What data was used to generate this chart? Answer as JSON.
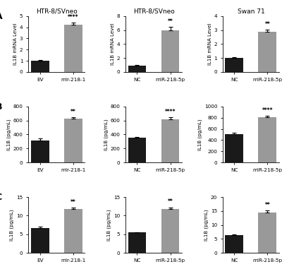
{
  "rows": [
    {
      "label": "A",
      "col_titles": [
        "HTR-8/SVneo",
        "HTR-8/SVneo",
        "Swan 71"
      ],
      "subplots": [
        {
          "categories": [
            "EV",
            "mir-218-1"
          ],
          "values": [
            1.0,
            4.25
          ],
          "errors": [
            0.06,
            0.18
          ],
          "ylabel": "IL1B mRNA Level",
          "ylim": [
            0,
            5
          ],
          "yticks": [
            0,
            1,
            2,
            3,
            4,
            5
          ],
          "bar_colors": [
            "#1a1a1a",
            "#999999"
          ],
          "significance": "****",
          "sig_on_bar": 1
        },
        {
          "categories": [
            "NC",
            "miR-218-5p"
          ],
          "values": [
            0.9,
            6.0
          ],
          "errors": [
            0.06,
            0.45
          ],
          "ylabel": "IL1B mRNA Level",
          "ylim": [
            0,
            8
          ],
          "yticks": [
            0,
            2,
            4,
            6,
            8
          ],
          "bar_colors": [
            "#1a1a1a",
            "#999999"
          ],
          "significance": "**",
          "sig_on_bar": 1
        },
        {
          "categories": [
            "NC",
            "miR-218-5p"
          ],
          "values": [
            1.0,
            2.9
          ],
          "errors": [
            0.05,
            0.14
          ],
          "ylabel": "IL1B mRNA Level",
          "ylim": [
            0,
            4
          ],
          "yticks": [
            0,
            1,
            2,
            3,
            4
          ],
          "bar_colors": [
            "#1a1a1a",
            "#999999"
          ],
          "significance": "**",
          "sig_on_bar": 1
        }
      ]
    },
    {
      "label": "B",
      "col_titles": [
        "",
        "",
        ""
      ],
      "subplots": [
        {
          "categories": [
            "EV",
            "mir-218-1"
          ],
          "values": [
            310,
            625
          ],
          "errors": [
            38,
            22
          ],
          "ylabel": "IL1B (pg/mL)",
          "ylim": [
            0,
            800
          ],
          "yticks": [
            0,
            200,
            400,
            600,
            800
          ],
          "bar_colors": [
            "#1a1a1a",
            "#999999"
          ],
          "significance": "**",
          "sig_on_bar": 1
        },
        {
          "categories": [
            "NC",
            "miR-218-5p"
          ],
          "values": [
            350,
            620
          ],
          "errors": [
            18,
            28
          ],
          "ylabel": "IL1B (pg/mL)",
          "ylim": [
            0,
            800
          ],
          "yticks": [
            0,
            200,
            400,
            600,
            800
          ],
          "bar_colors": [
            "#1a1a1a",
            "#999999"
          ],
          "significance": "****",
          "sig_on_bar": 1
        },
        {
          "categories": [
            "NC",
            "miR-218-5p"
          ],
          "values": [
            510,
            810
          ],
          "errors": [
            18,
            22
          ],
          "ylabel": "IL1B (pg/mL)",
          "ylim": [
            0,
            1000
          ],
          "yticks": [
            0,
            200,
            400,
            600,
            800,
            1000
          ],
          "bar_colors": [
            "#1a1a1a",
            "#999999"
          ],
          "significance": "****",
          "sig_on_bar": 1
        }
      ]
    },
    {
      "label": "C",
      "col_titles": [
        "",
        "",
        ""
      ],
      "subplots": [
        {
          "categories": [
            "EV",
            "mir-218-1"
          ],
          "values": [
            6.6,
            11.8
          ],
          "errors": [
            0.5,
            0.38
          ],
          "ylabel": "IL1B (pg/mL)",
          "ylim": [
            0,
            15
          ],
          "yticks": [
            0,
            5,
            10,
            15
          ],
          "bar_colors": [
            "#1a1a1a",
            "#999999"
          ],
          "significance": "**",
          "sig_on_bar": 1
        },
        {
          "categories": [
            "NC",
            "miR-218-5p"
          ],
          "values": [
            5.5,
            11.8
          ],
          "errors": [
            0.12,
            0.45
          ],
          "ylabel": "IL1B (pg/mL)",
          "ylim": [
            0,
            15
          ],
          "yticks": [
            0,
            5,
            10,
            15
          ],
          "bar_colors": [
            "#1a1a1a",
            "#999999"
          ],
          "significance": "**",
          "sig_on_bar": 1
        },
        {
          "categories": [
            "NC",
            "miR-218-5p"
          ],
          "values": [
            6.4,
            14.5
          ],
          "errors": [
            0.28,
            0.65
          ],
          "ylabel": "IL1B (pg/mL)",
          "ylim": [
            0,
            20
          ],
          "yticks": [
            0,
            5,
            10,
            15,
            20
          ],
          "bar_colors": [
            "#1a1a1a",
            "#999999"
          ],
          "significance": "**",
          "sig_on_bar": 1
        }
      ]
    }
  ]
}
